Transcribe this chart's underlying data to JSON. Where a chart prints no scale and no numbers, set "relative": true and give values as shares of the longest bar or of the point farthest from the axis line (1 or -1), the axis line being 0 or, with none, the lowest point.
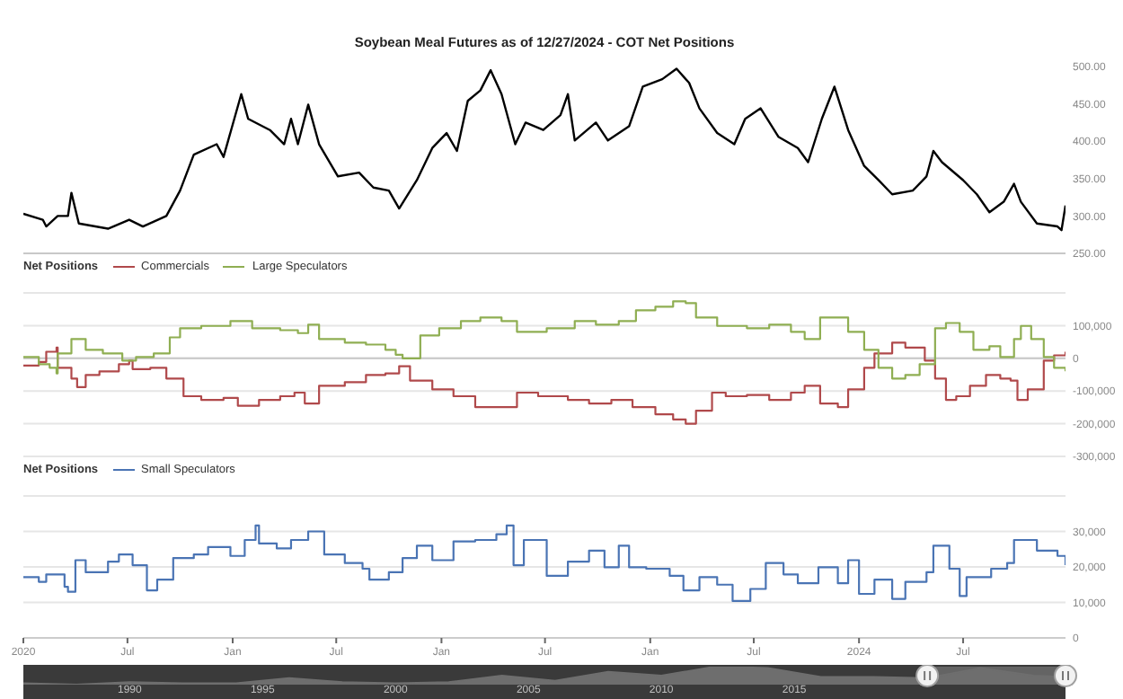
{
  "chart_data": [
    {
      "type": "line",
      "title": "Soybean Meal Futures as of 12/27/2024 - COT Net Positions",
      "tick_labels": "y",
      "xlim": [
        "2020-01-01",
        "2024-12-27"
      ],
      "xticks": [
        {
          "value": "2020-01-01",
          "label": null
        },
        {
          "value": "2020-07-01",
          "label": null
        },
        {
          "value": "2021-01-01",
          "label": null
        },
        {
          "value": "2021-07-01",
          "label": null
        },
        {
          "value": "2022-01-01",
          "label": null
        },
        {
          "value": "2022-07-01",
          "label": null
        },
        {
          "value": "2023-01-01",
          "label": null
        },
        {
          "value": "2023-07-01",
          "label": null
        },
        {
          "value": "2024-01-01",
          "label": null
        },
        {
          "value": "2024-07-01",
          "label": null
        }
      ],
      "ylim": [
        250,
        500
      ],
      "yticks": [
        {
          "value": 250,
          "label": "250.00"
        },
        {
          "value": 300,
          "label": "300.00"
        },
        {
          "value": 350,
          "label": "350.00"
        },
        {
          "value": 400,
          "label": "400.00"
        },
        {
          "value": 450,
          "label": "450.00"
        },
        {
          "value": 500,
          "label": "500.00"
        }
      ],
      "series": [
        {
          "color": "#000000",
          "x": [
            "2020-01-01",
            "2020-02-04",
            "2020-02-10",
            "2020-03-01",
            "2020-03-19",
            "2020-03-25",
            "2020-04-07",
            "2020-05-28",
            "2020-07-04",
            "2020-07-28",
            "2020-09-07",
            "2020-10-01",
            "2020-10-25",
            "2020-12-04",
            "2020-12-16",
            "2021-01-16",
            "2021-01-28",
            "2021-03-07",
            "2021-04-01",
            "2021-04-13",
            "2021-04-25",
            "2021-05-13",
            "2021-06-01",
            "2021-07-04",
            "2021-08-10",
            "2021-09-04",
            "2021-10-01",
            "2021-10-19",
            "2021-11-19",
            "2021-12-16",
            "2022-01-10",
            "2022-01-28",
            "2022-02-16",
            "2022-03-10",
            "2022-03-28",
            "2022-04-16",
            "2022-05-10",
            "2022-05-28",
            "2022-06-28",
            "2022-07-28",
            "2022-08-10",
            "2022-08-22",
            "2022-09-28",
            "2022-10-19",
            "2022-11-25",
            "2022-12-19",
            "2023-01-22",
            "2023-02-16",
            "2023-03-10",
            "2023-03-28",
            "2023-04-28",
            "2023-05-28",
            "2023-06-16",
            "2023-07-13",
            "2023-08-13",
            "2023-09-16",
            "2023-10-04",
            "2023-10-28",
            "2023-11-19",
            "2023-12-13",
            "2024-01-10",
            "2024-02-04",
            "2024-02-28",
            "2024-04-04",
            "2024-04-28",
            "2024-05-10",
            "2024-05-25",
            "2024-07-01",
            "2024-07-25",
            "2024-08-16",
            "2024-09-10",
            "2024-09-28",
            "2024-10-10",
            "2024-11-07",
            "2024-12-13",
            "2024-12-20",
            "2024-12-27"
          ],
          "values": [
            303,
            295,
            286,
            300,
            300,
            331,
            290,
            283,
            295,
            286,
            300,
            334,
            382,
            396,
            379,
            463,
            430,
            415,
            396,
            430,
            396,
            449,
            396,
            353,
            358,
            338,
            334,
            310,
            348,
            391,
            411,
            387,
            454,
            468,
            495,
            463,
            396,
            425,
            415,
            435,
            463,
            401,
            425,
            401,
            420,
            473,
            483,
            497,
            478,
            444,
            411,
            396,
            430,
            444,
            406,
            391,
            372,
            430,
            473,
            415,
            367,
            348,
            329,
            334,
            353,
            387,
            372,
            348,
            329,
            305,
            319,
            343,
            319,
            290,
            286,
            281,
            314
          ]
        }
      ]
    },
    {
      "type": "step",
      "legend_title": "Net Positions",
      "legend": "top left",
      "grid": "y",
      "tick_labels": "y",
      "xlim": [
        "2020-01-01",
        "2024-12-27"
      ],
      "xticks": [
        {
          "value": "2020-01-01",
          "label": null
        },
        {
          "value": "2020-07-01",
          "label": null
        },
        {
          "value": "2021-01-01",
          "label": null
        },
        {
          "value": "2021-07-01",
          "label": null
        },
        {
          "value": "2022-01-01",
          "label": null
        },
        {
          "value": "2022-07-01",
          "label": null
        },
        {
          "value": "2023-01-01",
          "label": null
        },
        {
          "value": "2023-07-01",
          "label": null
        },
        {
          "value": "2024-01-01",
          "label": null
        },
        {
          "value": "2024-07-01",
          "label": null
        }
      ],
      "ylim": [
        -300000,
        200000
      ],
      "yticks": [
        {
          "value": -300000,
          "label": "-300,000"
        },
        {
          "value": -200000,
          "label": "-200,000"
        },
        {
          "value": -100000,
          "label": "-100,000"
        },
        {
          "value": 0,
          "label": "0"
        },
        {
          "value": 100000,
          "label": "100,000"
        },
        {
          "value": 200000,
          "label": null
        }
      ],
      "ref_lines": [
        {
          "axis": "y",
          "value": 0,
          "color": "#c8c8c8"
        }
      ],
      "series": [
        {
          "name": "Commercials",
          "color": "#b0494b",
          "x": [
            "2020-01-01",
            "2020-01-28",
            "2020-02-10",
            "2020-02-28",
            "2020-03-01",
            "2020-03-25",
            "2020-04-04",
            "2020-04-19",
            "2020-05-13",
            "2020-06-16",
            "2020-07-04",
            "2020-07-10",
            "2020-08-10",
            "2020-09-07",
            "2020-10-07",
            "2020-11-07",
            "2020-12-16",
            "2021-01-10",
            "2021-02-16",
            "2021-03-25",
            "2021-04-19",
            "2021-05-07",
            "2021-06-01",
            "2021-07-16",
            "2021-08-22",
            "2021-09-25",
            "2021-10-19",
            "2021-11-07",
            "2021-12-16",
            "2022-01-22",
            "2022-03-01",
            "2022-04-07",
            "2022-05-13",
            "2022-06-19",
            "2022-08-10",
            "2022-09-16",
            "2022-10-25",
            "2022-12-01",
            "2023-01-10",
            "2023-02-10",
            "2023-03-04",
            "2023-03-22",
            "2023-04-19",
            "2023-05-13",
            "2023-06-19",
            "2023-07-28",
            "2023-09-04",
            "2023-09-28",
            "2023-10-25",
            "2023-11-25",
            "2023-12-13",
            "2024-01-10",
            "2024-01-28",
            "2024-02-28",
            "2024-03-22",
            "2024-04-25",
            "2024-05-13",
            "2024-06-01",
            "2024-06-19",
            "2024-07-13",
            "2024-08-10",
            "2024-09-04",
            "2024-09-22",
            "2024-10-04",
            "2024-10-22",
            "2024-11-19",
            "2024-12-07",
            "2024-12-27"
          ],
          "values": [
            -22000,
            -11000,
            20000,
            33000,
            -29000,
            -62000,
            -88000,
            -51000,
            -40000,
            -18000,
            -7000,
            -33000,
            -29000,
            -62000,
            -116000,
            -127000,
            -121000,
            -145000,
            -127000,
            -116000,
            -105000,
            -138000,
            -84000,
            -73000,
            -51000,
            -46000,
            -24000,
            -68000,
            -95000,
            -116000,
            -149000,
            -149000,
            -105000,
            -116000,
            -127000,
            -138000,
            -127000,
            -149000,
            -171000,
            -187000,
            -200000,
            -160000,
            -105000,
            -116000,
            -112000,
            -127000,
            -105000,
            -84000,
            -138000,
            -149000,
            -95000,
            -29000,
            15000,
            48000,
            33000,
            -7000,
            -62000,
            -127000,
            -116000,
            -84000,
            -51000,
            -62000,
            -68000,
            -127000,
            -95000,
            -7000,
            9000,
            20000
          ]
        },
        {
          "name": "Large Speculators",
          "color": "#8fae52",
          "x": [
            "2020-01-01",
            "2020-01-28",
            "2020-02-16",
            "2020-02-28",
            "2020-03-01",
            "2020-03-25",
            "2020-04-19",
            "2020-05-19",
            "2020-06-22",
            "2020-07-16",
            "2020-08-16",
            "2020-09-13",
            "2020-10-01",
            "2020-11-07",
            "2020-12-28",
            "2021-02-04",
            "2021-03-25",
            "2021-04-25",
            "2021-05-13",
            "2021-06-01",
            "2021-07-16",
            "2021-08-22",
            "2021-09-25",
            "2021-10-13",
            "2021-10-25",
            "2021-11-25",
            "2021-12-28",
            "2022-02-04",
            "2022-03-10",
            "2022-04-16",
            "2022-05-13",
            "2022-07-04",
            "2022-08-22",
            "2022-09-28",
            "2022-11-07",
            "2022-12-07",
            "2023-01-10",
            "2023-02-10",
            "2023-03-04",
            "2023-03-22",
            "2023-04-28",
            "2023-06-19",
            "2023-07-28",
            "2023-09-04",
            "2023-09-28",
            "2023-10-25",
            "2023-11-19",
            "2023-12-13",
            "2024-01-10",
            "2024-02-04",
            "2024-02-28",
            "2024-03-22",
            "2024-04-16",
            "2024-05-13",
            "2024-06-01",
            "2024-06-25",
            "2024-07-19",
            "2024-08-16",
            "2024-09-04",
            "2024-09-28",
            "2024-10-10",
            "2024-10-28",
            "2024-11-19",
            "2024-12-07",
            "2024-12-27"
          ],
          "values": [
            4000,
            -18000,
            -29000,
            -46000,
            15000,
            59000,
            26000,
            15000,
            -7000,
            4000,
            15000,
            64000,
            92000,
            99000,
            114000,
            92000,
            86000,
            77000,
            103000,
            59000,
            48000,
            42000,
            26000,
            11000,
            0,
            70000,
            92000,
            114000,
            125000,
            114000,
            81000,
            92000,
            114000,
            103000,
            114000,
            147000,
            158000,
            174000,
            169000,
            125000,
            99000,
            92000,
            103000,
            81000,
            59000,
            125000,
            125000,
            81000,
            26000,
            -29000,
            -62000,
            -51000,
            -18000,
            92000,
            108000,
            81000,
            26000,
            37000,
            4000,
            59000,
            99000,
            59000,
            4000,
            -29000,
            -40000
          ]
        }
      ]
    },
    {
      "type": "step",
      "legend_title": "Net Positions",
      "legend": "top left",
      "grid": "y",
      "xlim": [
        "2020-01-01",
        "2024-12-27"
      ],
      "xticks": [
        {
          "value": "2020-01-01",
          "label": "2020"
        },
        {
          "value": "2020-07-01",
          "label": "Jul"
        },
        {
          "value": "2021-01-01",
          "label": "Jan"
        },
        {
          "value": "2021-07-01",
          "label": "Jul"
        },
        {
          "value": "2022-01-01",
          "label": "Jan"
        },
        {
          "value": "2022-07-01",
          "label": "Jul"
        },
        {
          "value": "2023-01-01",
          "label": "Jan"
        },
        {
          "value": "2023-07-01",
          "label": "Jul"
        },
        {
          "value": "2024-01-01",
          "label": "2024"
        },
        {
          "value": "2024-07-01",
          "label": "Jul"
        }
      ],
      "ylim": [
        0,
        40000
      ],
      "yticks": [
        {
          "value": 0,
          "label": "0"
        },
        {
          "value": 10000,
          "label": "10,000"
        },
        {
          "value": 20000,
          "label": "20,000"
        },
        {
          "value": 30000,
          "label": "30,000"
        },
        {
          "value": 40000,
          "label": null
        }
      ],
      "series": [
        {
          "name": "Small Speculators",
          "color": "#4a74b4",
          "x": [
            "2020-01-01",
            "2020-01-28",
            "2020-02-10",
            "2020-03-13",
            "2020-03-19",
            "2020-04-01",
            "2020-04-19",
            "2020-05-28",
            "2020-06-16",
            "2020-07-10",
            "2020-08-04",
            "2020-08-22",
            "2020-09-19",
            "2020-10-25",
            "2020-11-19",
            "2020-12-28",
            "2021-01-22",
            "2021-02-10",
            "2021-02-16",
            "2021-03-19",
            "2021-04-13",
            "2021-05-13",
            "2021-06-10",
            "2021-07-16",
            "2021-08-16",
            "2021-08-28",
            "2021-10-01",
            "2021-10-25",
            "2021-11-19",
            "2021-12-16",
            "2022-01-22",
            "2022-03-01",
            "2022-04-07",
            "2022-04-25",
            "2022-05-07",
            "2022-05-25",
            "2022-07-04",
            "2022-08-10",
            "2022-09-16",
            "2022-10-13",
            "2022-11-07",
            "2022-11-25",
            "2022-12-25",
            "2023-02-04",
            "2023-02-28",
            "2023-03-28",
            "2023-04-28",
            "2023-05-25",
            "2023-06-25",
            "2023-07-22",
            "2023-08-22",
            "2023-09-16",
            "2023-10-22",
            "2023-11-25",
            "2023-12-13",
            "2024-01-01",
            "2024-01-28",
            "2024-02-28",
            "2024-03-22",
            "2024-04-28",
            "2024-05-10",
            "2024-06-07",
            "2024-06-25",
            "2024-07-07",
            "2024-08-19",
            "2024-09-16",
            "2024-09-28",
            "2024-11-07",
            "2024-12-13",
            "2024-12-27"
          ],
          "values": [
            17100,
            15800,
            17900,
            14400,
            13000,
            21900,
            18500,
            21500,
            23500,
            20500,
            13400,
            16400,
            22500,
            23500,
            25600,
            23100,
            27600,
            31700,
            26600,
            25200,
            27600,
            30000,
            23500,
            21100,
            19500,
            16400,
            18500,
            22500,
            26000,
            21900,
            27200,
            27600,
            29200,
            31700,
            20500,
            27600,
            17500,
            21500,
            24600,
            19900,
            26000,
            19900,
            19500,
            17500,
            13400,
            17100,
            15000,
            10400,
            13800,
            21100,
            17900,
            15400,
            19900,
            15400,
            21900,
            12400,
            16400,
            11000,
            15800,
            18500,
            26000,
            19500,
            11800,
            17100,
            19500,
            21100,
            27600,
            24600,
            23100,
            20500
          ]
        }
      ]
    },
    {
      "type": "area",
      "relative": true,
      "tick_labels": "x",
      "xlim": [
        1986,
        2025.2
      ],
      "xticks": [
        1990,
        1995,
        2000,
        2005,
        2010,
        2015
      ],
      "bands": [
        {
          "axis": "x",
          "from": 2020,
          "to": 2025.2,
          "color": "#9a9a9a"
        }
      ],
      "series": [
        {
          "color": "#6e6e6e",
          "x": [
            1986,
            1988,
            1990,
            1992,
            1994,
            1996,
            1998,
            2000,
            2002,
            2004,
            2006,
            2008,
            2010,
            2012,
            2014,
            2016,
            2018,
            2020,
            2022,
            2024,
            2025.2
          ],
          "values": [
            0.07,
            0,
            0.14,
            0.07,
            0.07,
            0.36,
            0.14,
            0.07,
            0.14,
            0.5,
            0.21,
            0.71,
            0.5,
            1,
            0.93,
            0.43,
            0.43,
            0.36,
            0.93,
            0.5,
            0.43
          ]
        }
      ]
    }
  ]
}
